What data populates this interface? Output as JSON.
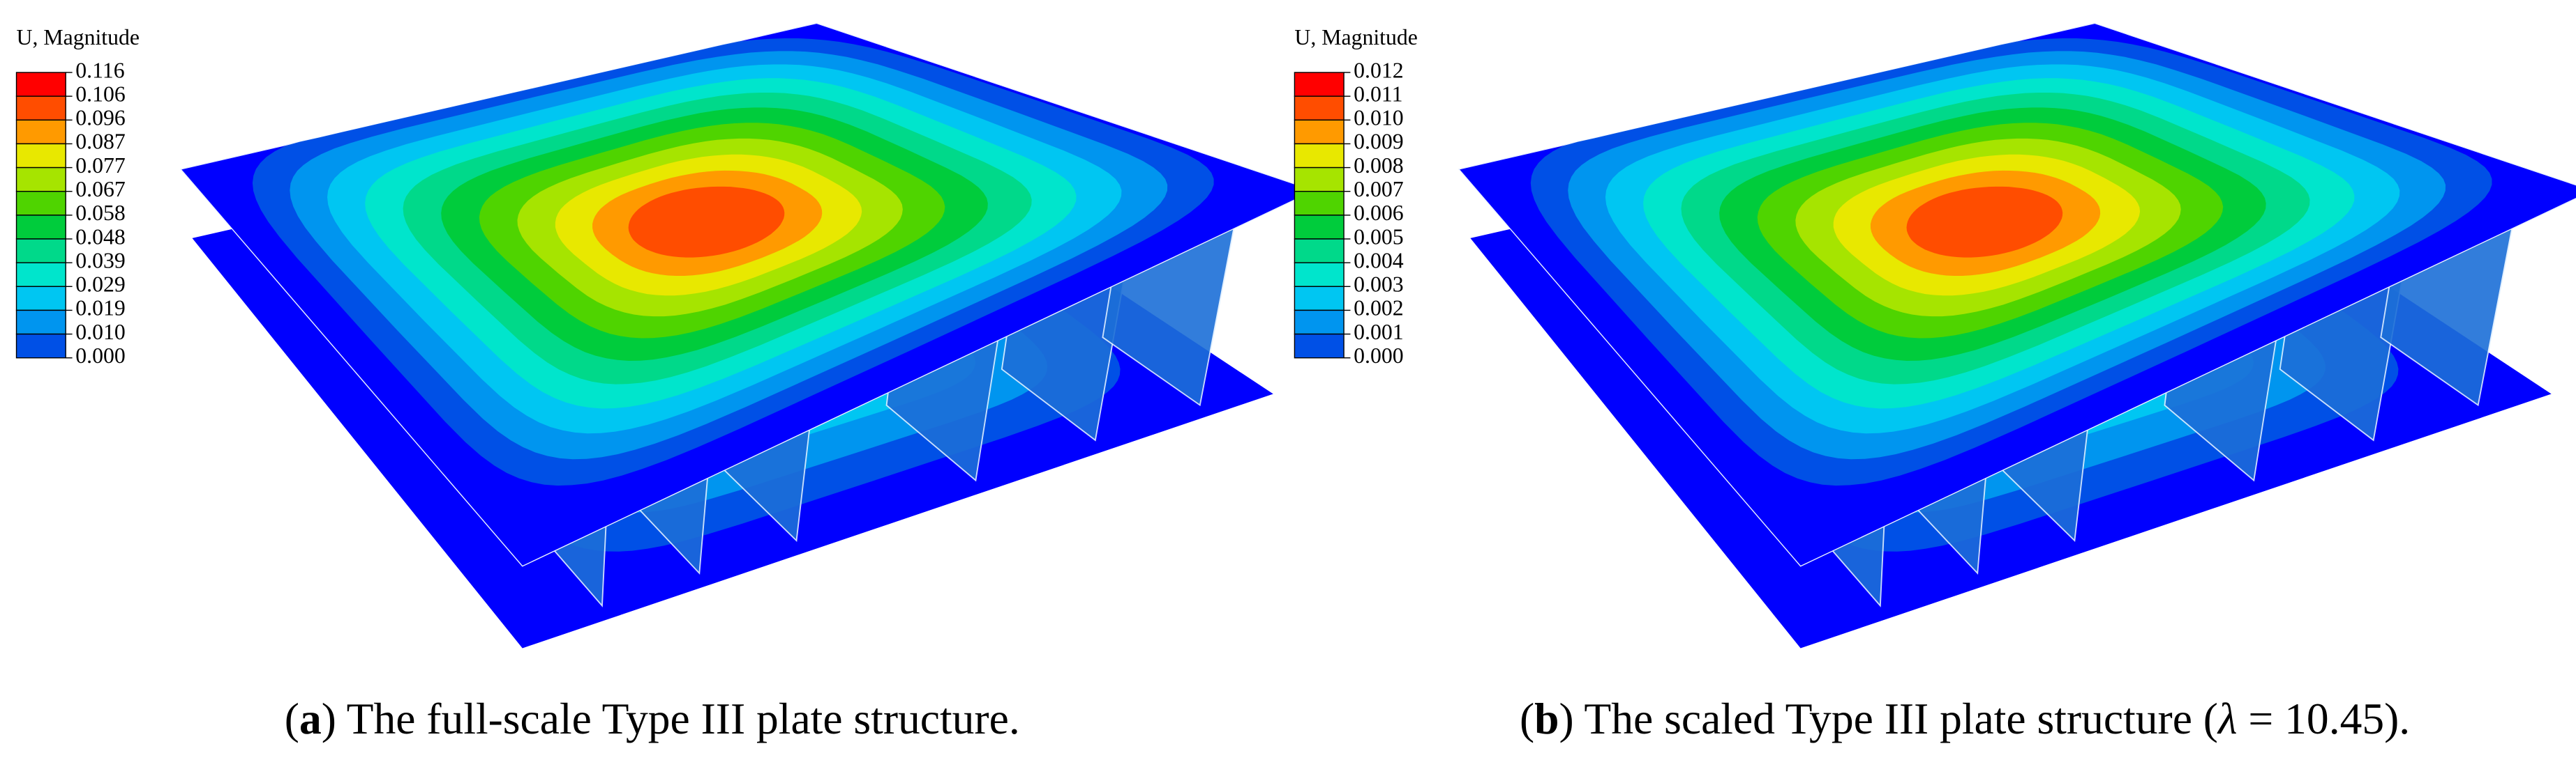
{
  "panels": [
    {
      "legend": {
        "title": "U, Magnitude",
        "values": [
          "0.116",
          "0.106",
          "0.096",
          "0.087",
          "0.077",
          "0.067",
          "0.058",
          "0.048",
          "0.039",
          "0.029",
          "0.019",
          "0.010",
          "0.000"
        ]
      },
      "caption": {
        "open": "(",
        "label": "a",
        "text": ") The full-scale Type III plate structure."
      }
    },
    {
      "legend": {
        "title": "U, Magnitude",
        "values": [
          "0.012",
          "0.011",
          "0.010",
          "0.009",
          "0.008",
          "0.007",
          "0.006",
          "0.005",
          "0.004",
          "0.003",
          "0.002",
          "0.001",
          "0.000"
        ]
      },
      "caption": {
        "open": "(",
        "label": "b",
        "text": ") The scaled Type III plate structure (",
        "symbol": "λ",
        "tail": " = 10.45)."
      }
    }
  ]
}
